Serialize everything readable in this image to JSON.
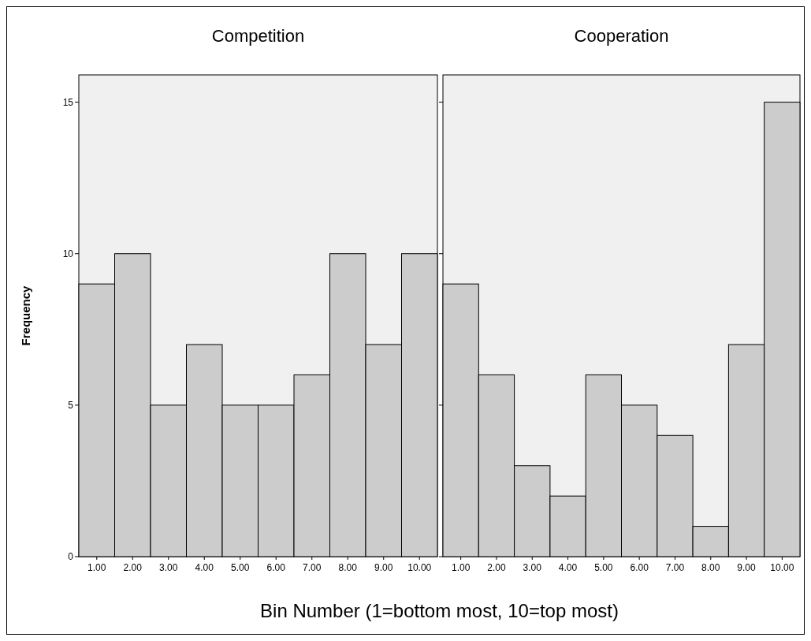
{
  "chart_data": [
    {
      "type": "bar",
      "title": "Competition",
      "ylabel": "Frequency",
      "xlabel": "Bin Number (1=bottom most, 10=top most)",
      "categories": [
        "1.00",
        "2.00",
        "3.00",
        "4.00",
        "5.00",
        "6.00",
        "7.00",
        "8.00",
        "9.00",
        "10.00"
      ],
      "values": [
        9,
        10,
        5,
        7,
        5,
        5,
        6,
        10,
        7,
        10
      ],
      "color": "#cccccc",
      "ylim": [
        0,
        15.9
      ],
      "yticks": [
        0,
        5,
        10,
        15
      ]
    },
    {
      "type": "bar",
      "title": "Cooperation",
      "categories": [
        "1.00",
        "2.00",
        "3.00",
        "4.00",
        "5.00",
        "6.00",
        "7.00",
        "8.00",
        "9.00",
        "10.00"
      ],
      "values": [
        9,
        6,
        3,
        2,
        6,
        5,
        4,
        1,
        7,
        15
      ],
      "color": "#cccccc",
      "ylim": [
        0,
        15.9
      ],
      "yticks": [
        0,
        5,
        10,
        15
      ],
      "tick_labels": "x"
    }
  ]
}
